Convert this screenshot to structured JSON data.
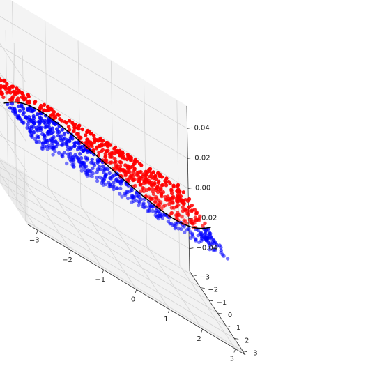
{
  "chart_data": {
    "type": "scatter",
    "projection": "3d",
    "title": "",
    "xlabel": "",
    "ylabel": "",
    "zlabel": "",
    "xlim": [
      -3.3,
      3.3
    ],
    "ylim": [
      -3.3,
      3.3
    ],
    "zlim": [
      -0.055,
      0.055
    ],
    "x_ticks": [
      -3,
      -2,
      -1,
      0,
      1,
      2,
      3
    ],
    "y_ticks": [
      -3,
      -2,
      -1,
      0,
      1,
      2,
      3
    ],
    "z_ticks": [
      -0.04,
      -0.02,
      0.0,
      0.02,
      0.04
    ],
    "x_tick_labels": [
      "−3",
      "−2",
      "−1",
      "0",
      "1",
      "2",
      "3"
    ],
    "y_tick_labels": [
      "−3",
      "−2",
      "−1",
      "0",
      "1",
      "2",
      "3"
    ],
    "z_tick_labels": [
      "−0.04",
      "−0.02",
      "0.00",
      "0.02",
      "0.04"
    ],
    "grid": true,
    "legend": "none",
    "surface_z": 0,
    "decision_curve": "y = 1.8 * sin(x)",
    "series": [
      {
        "color": "#ff0000",
        "region": "y < 1.8 * sin(x)",
        "approx_point_count": 560,
        "x_range": [
          -3,
          3
        ],
        "y_range": [
          -3,
          3
        ],
        "z": 0
      },
      {
        "color": "#0000ff",
        "region": "y > 1.8 * sin(x)",
        "approx_point_count": 440,
        "x_range": [
          -3,
          3
        ],
        "y_range": [
          -3,
          3
        ],
        "z": 0
      }
    ],
    "curve": {
      "color": "#000000",
      "x_range": [
        -3.14,
        3.14
      ]
    }
  }
}
